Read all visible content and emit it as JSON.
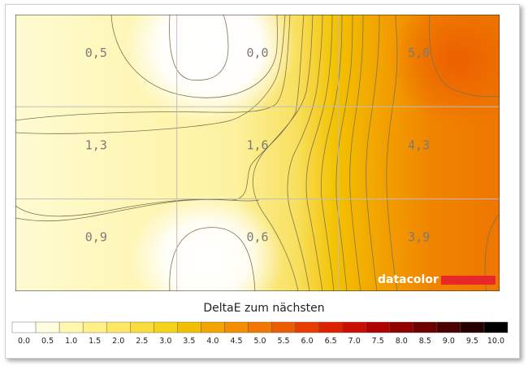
{
  "chart_data": {
    "type": "heatmap",
    "title": "DeltaE zum nächsten",
    "grid": {
      "rows": 3,
      "cols": 3
    },
    "values": [
      [
        0.5,
        0.0,
        5.0
      ],
      [
        1.3,
        1.6,
        4.3
      ],
      [
        0.9,
        0.6,
        3.9
      ]
    ],
    "labels": [
      [
        "0,5",
        "0,0",
        "5,0"
      ],
      [
        "1,3",
        "1,6",
        "4,3"
      ],
      [
        "0,9",
        "0,6",
        "3,9"
      ]
    ],
    "scale": {
      "min": 0,
      "max": 10,
      "ticks": [
        "0.0",
        "0.5",
        "1.0",
        "1.5",
        "2.0",
        "2.5",
        "3.0",
        "3.5",
        "4.0",
        "4.5",
        "5.0",
        "5.5",
        "6.0",
        "6.5",
        "7.0",
        "7.5",
        "8.0",
        "8.5",
        "9.0",
        "9.5",
        "10.0"
      ],
      "colors": [
        "#ffffff",
        "#fffde0",
        "#fff7b0",
        "#fff088",
        "#fde764",
        "#f8dc3c",
        "#f4d21a",
        "#f2c000",
        "#f2a400",
        "#f28e00",
        "#f07800",
        "#ee5c00",
        "#e83c00",
        "#dd2200",
        "#c91000",
        "#b00000",
        "#900000",
        "#6e0000",
        "#4a0000",
        "#250000",
        "#000000"
      ]
    },
    "logo": "datacolor",
    "logo_color": "#e8272a"
  }
}
